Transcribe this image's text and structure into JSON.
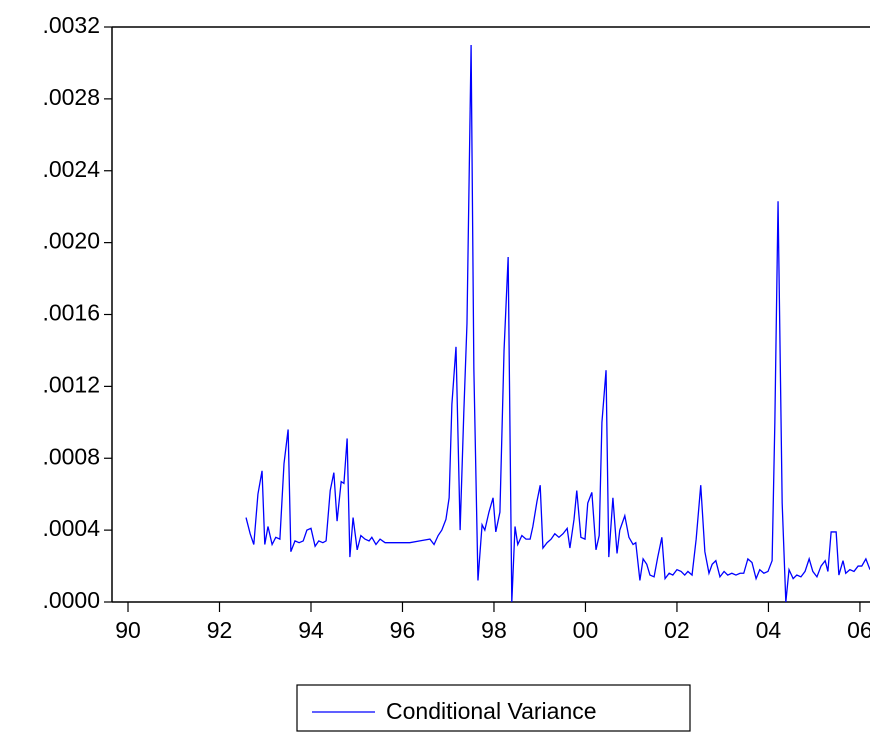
{
  "chart_data": {
    "type": "line",
    "x": [
      1992.58,
      1992.67,
      1992.75,
      1992.84,
      1992.93,
      1992.99,
      1993.06,
      1993.15,
      1993.23,
      1993.32,
      1993.41,
      1993.5,
      1993.56,
      1993.65,
      1993.74,
      1993.83,
      1993.91,
      1994.0,
      1994.09,
      1994.17,
      1994.26,
      1994.33,
      1994.42,
      1994.5,
      1994.57,
      1994.66,
      1994.72,
      1994.79,
      1994.85,
      1994.92,
      1995.01,
      1995.09,
      1995.18,
      1995.27,
      1995.33,
      1995.42,
      1995.51,
      1995.62,
      1995.73,
      1995.95,
      1996.16,
      1996.38,
      1996.6,
      1996.69,
      1996.78,
      1996.86,
      1996.95,
      1997.02,
      1997.08,
      1997.17,
      1997.26,
      1997.34,
      1997.41,
      1997.5,
      1997.56,
      1997.65,
      1997.74,
      1997.8,
      1997.89,
      1997.98,
      1998.04,
      1998.13,
      1998.22,
      1998.31,
      1998.39,
      1998.46,
      1998.52,
      1998.61,
      1998.7,
      1998.79,
      1998.85,
      1998.94,
      1999.01,
      1999.07,
      1999.16,
      1999.25,
      1999.33,
      1999.42,
      1999.51,
      1999.6,
      1999.66,
      1999.75,
      1999.81,
      1999.9,
      1999.99,
      2000.05,
      2000.14,
      2000.23,
      2000.3,
      2000.36,
      2000.45,
      2000.51,
      2000.6,
      2000.69,
      2000.75,
      2000.86,
      2000.95,
      2001.04,
      2001.1,
      2001.19,
      2001.26,
      2001.34,
      2001.41,
      2001.5,
      2001.58,
      2001.67,
      2001.74,
      2001.83,
      2001.91,
      2002.0,
      2002.09,
      2002.17,
      2002.24,
      2002.33,
      2002.42,
      2002.52,
      2002.61,
      2002.7,
      2002.77,
      2002.85,
      2002.94,
      2003.03,
      2003.11,
      2003.2,
      2003.29,
      2003.38,
      2003.46,
      2003.55,
      2003.64,
      2003.73,
      2003.81,
      2003.9,
      2003.99,
      2004.08,
      2004.14,
      2004.21,
      2004.3,
      2004.38,
      2004.45,
      2004.54,
      2004.62,
      2004.71,
      2004.8,
      2004.89,
      2004.97,
      2005.06,
      2005.15,
      2005.24,
      2005.3,
      2005.37,
      2005.48,
      2005.54,
      2005.63,
      2005.69,
      2005.78,
      2005.87,
      2005.96,
      2006.04,
      2006.13,
      2006.22
    ],
    "series": [
      {
        "name": "Conditional Variance",
        "color": "#0000ff",
        "values": [
          0.00047,
          0.00038,
          0.00032,
          0.0006,
          0.00073,
          0.00032,
          0.00042,
          0.00032,
          0.00036,
          0.00035,
          0.00077,
          0.00096,
          0.00028,
          0.00034,
          0.00033,
          0.00034,
          0.0004,
          0.00041,
          0.00031,
          0.00034,
          0.00033,
          0.00034,
          0.00062,
          0.00072,
          0.00045,
          0.00067,
          0.00066,
          0.00091,
          0.00025,
          0.00047,
          0.00029,
          0.00037,
          0.00035,
          0.00034,
          0.00036,
          0.00032,
          0.00035,
          0.00033,
          0.00033,
          0.00033,
          0.00033,
          0.00034,
          0.00035,
          0.00032,
          0.00037,
          0.0004,
          0.00046,
          0.00058,
          0.0011,
          0.00142,
          0.0004,
          0.00105,
          0.00155,
          0.0031,
          0.0013,
          0.00012,
          0.00043,
          0.0004,
          0.0005,
          0.00058,
          0.00039,
          0.0005,
          0.0014,
          0.00192,
          0.0,
          0.00042,
          0.00032,
          0.00037,
          0.00035,
          0.00035,
          0.00042,
          0.00056,
          0.00065,
          0.0003,
          0.00033,
          0.00035,
          0.00038,
          0.00036,
          0.00038,
          0.00041,
          0.0003,
          0.00046,
          0.00062,
          0.00036,
          0.00035,
          0.00055,
          0.00061,
          0.00029,
          0.00037,
          0.001,
          0.00129,
          0.00025,
          0.00058,
          0.00027,
          0.0004,
          0.00048,
          0.00036,
          0.00032,
          0.00033,
          0.00012,
          0.00024,
          0.00021,
          0.00015,
          0.00014,
          0.00025,
          0.00036,
          0.00013,
          0.00016,
          0.00015,
          0.00018,
          0.00017,
          0.00015,
          0.00017,
          0.00015,
          0.00035,
          0.00065,
          0.00028,
          0.00016,
          0.00021,
          0.00023,
          0.00014,
          0.00017,
          0.00015,
          0.00016,
          0.00015,
          0.00016,
          0.00016,
          0.00024,
          0.00022,
          0.00013,
          0.00018,
          0.00016,
          0.00017,
          0.00023,
          0.001,
          0.00223,
          0.00055,
          0.0,
          0.00018,
          0.00013,
          0.00015,
          0.00014,
          0.00017,
          0.00024,
          0.00017,
          0.00014,
          0.0002,
          0.00023,
          0.00017,
          0.00039,
          0.00039,
          0.00015,
          0.00023,
          0.00016,
          0.00018,
          0.00017,
          0.0002,
          0.0002,
          0.00024,
          0.00018
        ]
      }
    ],
    "xlim": [
      1989.65,
      2006.22
    ],
    "xticks": [
      {
        "value": 1990,
        "label": "90"
      },
      {
        "value": 1992,
        "label": "92"
      },
      {
        "value": 1994,
        "label": "94"
      },
      {
        "value": 1996,
        "label": "96"
      },
      {
        "value": 1998,
        "label": "98"
      },
      {
        "value": 2000,
        "label": "00"
      },
      {
        "value": 2002,
        "label": "02"
      },
      {
        "value": 2004,
        "label": "04"
      },
      {
        "value": 2006,
        "label": "06"
      }
    ],
    "ylim": [
      0,
      0.0032
    ],
    "yticks": [
      {
        "value": 0,
        "label": ".0000"
      },
      {
        "value": 0.0004,
        "label": ".0004"
      },
      {
        "value": 0.0008,
        "label": ".0008"
      },
      {
        "value": 0.0012,
        "label": ".0012"
      },
      {
        "value": 0.0016,
        "label": ".0016"
      },
      {
        "value": 0.002,
        "label": ".0020"
      },
      {
        "value": 0.0024,
        "label": ".0024"
      },
      {
        "value": 0.0028,
        "label": ".0028"
      },
      {
        "value": 0.0032,
        "label": ".0032"
      }
    ],
    "grid": false,
    "legend": "bottom"
  }
}
